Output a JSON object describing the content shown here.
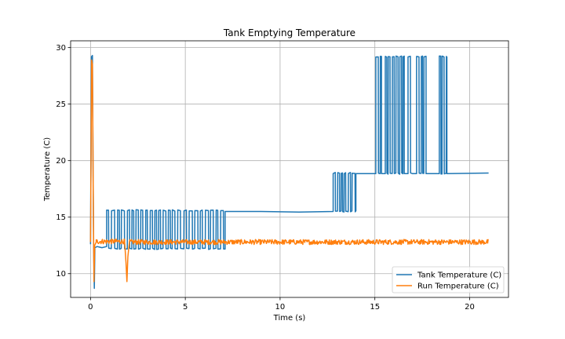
{
  "chart_data": {
    "type": "line",
    "title": "Tank Emptying Temperature",
    "xlabel": "Time (s)",
    "ylabel": "Temperature (C)",
    "xlim": [
      -1.05,
      22.05
    ],
    "ylim": [
      7.9,
      30.6
    ],
    "xticks": [
      0,
      5,
      10,
      15,
      20
    ],
    "yticks": [
      10,
      15,
      20,
      25,
      30
    ],
    "grid": true,
    "legend_position": "lower-right",
    "series": [
      {
        "name": "Tank Temperature (C)",
        "color": "#1f77b4",
        "segments": [
          {
            "kind": "path",
            "points": [
              [
                0.0,
                12.6
              ],
              [
                0.05,
                29.2
              ],
              [
                0.1,
                29.3
              ],
              [
                0.13,
                20.0
              ],
              [
                0.16,
                12.9
              ],
              [
                0.2,
                8.7
              ],
              [
                0.23,
                12.3
              ],
              [
                0.35,
                12.4
              ],
              [
                0.6,
                12.3
              ],
              [
                0.85,
                12.4
              ]
            ]
          },
          {
            "kind": "toggle",
            "x_start": 0.85,
            "x_end": 7.1,
            "low": 12.2,
            "high": 15.6,
            "period": 0.2
          },
          {
            "kind": "path",
            "points": [
              [
                7.1,
                15.5
              ],
              [
                9.0,
                15.5
              ],
              [
                11.0,
                15.45
              ],
              [
                12.8,
                15.5
              ]
            ]
          },
          {
            "kind": "toggle",
            "x_start": 12.8,
            "x_end": 14.0,
            "low": 15.5,
            "high": 18.9,
            "period": 0.18
          },
          {
            "kind": "path",
            "points": [
              [
                14.0,
                18.85
              ],
              [
                15.05,
                18.85
              ]
            ]
          },
          {
            "kind": "toggle",
            "x_start": 15.05,
            "x_end": 15.35,
            "low": 18.85,
            "high": 29.2,
            "period": 0.18
          },
          {
            "kind": "path",
            "points": [
              [
                15.35,
                18.85
              ],
              [
                15.55,
                18.85
              ]
            ]
          },
          {
            "kind": "toggle",
            "x_start": 15.55,
            "x_end": 16.55,
            "low": 18.85,
            "high": 29.2,
            "period": 0.16
          },
          {
            "kind": "path",
            "points": [
              [
                16.55,
                18.85
              ],
              [
                16.75,
                18.85
              ]
            ]
          },
          {
            "kind": "toggle",
            "x_start": 16.75,
            "x_end": 17.0,
            "low": 18.85,
            "high": 29.2,
            "period": 0.15
          },
          {
            "kind": "path",
            "points": [
              [
                17.0,
                18.85
              ],
              [
                17.2,
                18.85
              ]
            ]
          },
          {
            "kind": "toggle",
            "x_start": 17.2,
            "x_end": 17.7,
            "low": 18.85,
            "high": 29.2,
            "period": 0.16
          },
          {
            "kind": "path",
            "points": [
              [
                17.7,
                18.85
              ],
              [
                18.4,
                18.85
              ]
            ]
          },
          {
            "kind": "toggle",
            "x_start": 18.4,
            "x_end": 18.8,
            "low": 18.85,
            "high": 29.2,
            "period": 0.13
          },
          {
            "kind": "path",
            "points": [
              [
                18.8,
                18.85
              ],
              [
                21.0,
                18.9
              ]
            ]
          }
        ]
      },
      {
        "name": "Run Temperature (C)",
        "color": "#ff7f0e",
        "segments": [
          {
            "kind": "path",
            "points": [
              [
                0.0,
                12.8
              ],
              [
                0.06,
                28.9
              ],
              [
                0.1,
                28.5
              ],
              [
                0.14,
                18.0
              ],
              [
                0.18,
                9.3
              ],
              [
                0.22,
                12.5
              ],
              [
                0.3,
                12.8
              ]
            ]
          },
          {
            "kind": "noise",
            "x_start": 0.3,
            "x_end": 1.8,
            "center": 12.85,
            "amplitude": 0.22
          },
          {
            "kind": "path",
            "points": [
              [
                1.8,
                12.8
              ],
              [
                1.87,
                11.0
              ],
              [
                1.92,
                9.3
              ],
              [
                1.97,
                11.5
              ],
              [
                2.05,
                12.8
              ]
            ]
          },
          {
            "kind": "noise",
            "x_start": 2.05,
            "x_end": 21.0,
            "center": 12.8,
            "amplitude": 0.22
          }
        ]
      }
    ]
  }
}
